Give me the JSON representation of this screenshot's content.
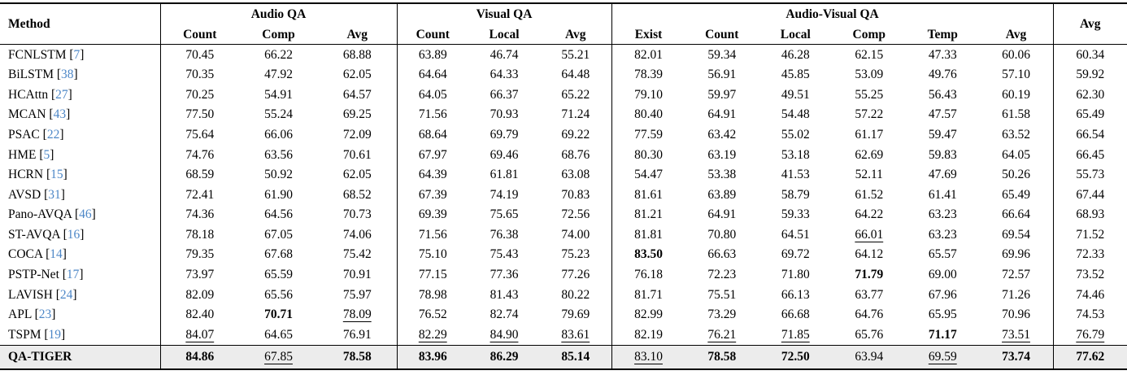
{
  "table": {
    "title": "AVQA benchmark results table",
    "header": {
      "method": "Method",
      "avg": "Avg",
      "groups": [
        {
          "label": "Audio QA",
          "cols": [
            "Count",
            "Comp",
            "Avg"
          ]
        },
        {
          "label": "Visual QA",
          "cols": [
            "Count",
            "Local",
            "Avg"
          ]
        },
        {
          "label": "Audio-Visual QA",
          "cols": [
            "Exist",
            "Count",
            "Local",
            "Comp",
            "Temp",
            "Avg"
          ]
        }
      ]
    },
    "colors": {
      "citation": "#4d87c7",
      "highlight_row_bg": "#ececec",
      "rule": "#000000"
    },
    "rows": [
      {
        "method": "FCNLSTM",
        "cite": "7",
        "highlight": false,
        "values": [
          "70.45",
          "66.22",
          "68.88",
          "63.89",
          "46.74",
          "55.21",
          "82.01",
          "59.34",
          "46.28",
          "62.15",
          "47.33",
          "60.06",
          "60.34"
        ],
        "fmt": [
          "",
          "",
          "",
          "",
          "",
          "",
          "",
          "",
          "",
          "",
          "",
          "",
          ""
        ]
      },
      {
        "method": "BiLSTM",
        "cite": "38",
        "highlight": false,
        "values": [
          "70.35",
          "47.92",
          "62.05",
          "64.64",
          "64.33",
          "64.48",
          "78.39",
          "56.91",
          "45.85",
          "53.09",
          "49.76",
          "57.10",
          "59.92"
        ],
        "fmt": [
          "",
          "",
          "",
          "",
          "",
          "",
          "",
          "",
          "",
          "",
          "",
          "",
          ""
        ]
      },
      {
        "method": "HCAttn",
        "cite": "27",
        "highlight": false,
        "values": [
          "70.25",
          "54.91",
          "64.57",
          "64.05",
          "66.37",
          "65.22",
          "79.10",
          "59.97",
          "49.51",
          "55.25",
          "56.43",
          "60.19",
          "62.30"
        ],
        "fmt": [
          "",
          "",
          "",
          "",
          "",
          "",
          "",
          "",
          "",
          "",
          "",
          "",
          ""
        ]
      },
      {
        "method": "MCAN",
        "cite": "43",
        "highlight": false,
        "values": [
          "77.50",
          "55.24",
          "69.25",
          "71.56",
          "70.93",
          "71.24",
          "80.40",
          "64.91",
          "54.48",
          "57.22",
          "47.57",
          "61.58",
          "65.49"
        ],
        "fmt": [
          "",
          "",
          "",
          "",
          "",
          "",
          "",
          "",
          "",
          "",
          "",
          "",
          ""
        ]
      },
      {
        "method": "PSAC",
        "cite": "22",
        "highlight": false,
        "values": [
          "75.64",
          "66.06",
          "72.09",
          "68.64",
          "69.79",
          "69.22",
          "77.59",
          "63.42",
          "55.02",
          "61.17",
          "59.47",
          "63.52",
          "66.54"
        ],
        "fmt": [
          "",
          "",
          "",
          "",
          "",
          "",
          "",
          "",
          "",
          "",
          "",
          "",
          ""
        ]
      },
      {
        "method": "HME",
        "cite": "5",
        "highlight": false,
        "values": [
          "74.76",
          "63.56",
          "70.61",
          "67.97",
          "69.46",
          "68.76",
          "80.30",
          "63.19",
          "53.18",
          "62.69",
          "59.83",
          "64.05",
          "66.45"
        ],
        "fmt": [
          "",
          "",
          "",
          "",
          "",
          "",
          "",
          "",
          "",
          "",
          "",
          "",
          ""
        ]
      },
      {
        "method": "HCRN",
        "cite": "15",
        "highlight": false,
        "values": [
          "68.59",
          "50.92",
          "62.05",
          "64.39",
          "61.81",
          "63.08",
          "54.47",
          "53.38",
          "41.53",
          "52.11",
          "47.69",
          "50.26",
          "55.73"
        ],
        "fmt": [
          "",
          "",
          "",
          "",
          "",
          "",
          "",
          "",
          "",
          "",
          "",
          "",
          ""
        ]
      },
      {
        "method": "AVSD",
        "cite": "31",
        "highlight": false,
        "values": [
          "72.41",
          "61.90",
          "68.52",
          "67.39",
          "74.19",
          "70.83",
          "81.61",
          "63.89",
          "58.79",
          "61.52",
          "61.41",
          "65.49",
          "67.44"
        ],
        "fmt": [
          "",
          "",
          "",
          "",
          "",
          "",
          "",
          "",
          "",
          "",
          "",
          "",
          ""
        ]
      },
      {
        "method": "Pano-AVQA",
        "cite": "46",
        "highlight": false,
        "values": [
          "74.36",
          "64.56",
          "70.73",
          "69.39",
          "75.65",
          "72.56",
          "81.21",
          "64.91",
          "59.33",
          "64.22",
          "63.23",
          "66.64",
          "68.93"
        ],
        "fmt": [
          "",
          "",
          "",
          "",
          "",
          "",
          "",
          "",
          "",
          "",
          "",
          "",
          ""
        ]
      },
      {
        "method": "ST-AVQA",
        "cite": "16",
        "highlight": false,
        "values": [
          "78.18",
          "67.05",
          "74.06",
          "71.56",
          "76.38",
          "74.00",
          "81.81",
          "70.80",
          "64.51",
          "66.01",
          "63.23",
          "69.54",
          "71.52"
        ],
        "fmt": [
          "",
          "",
          "",
          "",
          "",
          "",
          "",
          "",
          "",
          "u",
          "",
          "",
          ""
        ]
      },
      {
        "method": "COCA",
        "cite": "14",
        "highlight": false,
        "values": [
          "79.35",
          "67.68",
          "75.42",
          "75.10",
          "75.43",
          "75.23",
          "83.50",
          "66.63",
          "69.72",
          "64.12",
          "65.57",
          "69.96",
          "72.33"
        ],
        "fmt": [
          "",
          "",
          "",
          "",
          "",
          "",
          "b",
          "",
          "",
          "",
          "",
          "",
          ""
        ]
      },
      {
        "method": "PSTP-Net",
        "cite": "17",
        "highlight": false,
        "values": [
          "73.97",
          "65.59",
          "70.91",
          "77.15",
          "77.36",
          "77.26",
          "76.18",
          "72.23",
          "71.80",
          "71.79",
          "69.00",
          "72.57",
          "73.52"
        ],
        "fmt": [
          "",
          "",
          "",
          "",
          "",
          "",
          "",
          "",
          "",
          "b",
          "",
          "",
          ""
        ]
      },
      {
        "method": "LAVISH",
        "cite": "24",
        "highlight": false,
        "values": [
          "82.09",
          "65.56",
          "75.97",
          "78.98",
          "81.43",
          "80.22",
          "81.71",
          "75.51",
          "66.13",
          "63.77",
          "67.96",
          "71.26",
          "74.46"
        ],
        "fmt": [
          "",
          "",
          "",
          "",
          "",
          "",
          "",
          "",
          "",
          "",
          "",
          "",
          ""
        ]
      },
      {
        "method": "APL",
        "cite": "23",
        "highlight": false,
        "values": [
          "82.40",
          "70.71",
          "78.09",
          "76.52",
          "82.74",
          "79.69",
          "82.99",
          "73.29",
          "66.68",
          "64.76",
          "65.95",
          "70.96",
          "74.53"
        ],
        "fmt": [
          "",
          "b",
          "u",
          "",
          "",
          "",
          "",
          "",
          "",
          "",
          "",
          "",
          ""
        ]
      },
      {
        "method": "TSPM",
        "cite": "19",
        "highlight": false,
        "values": [
          "84.07",
          "64.65",
          "76.91",
          "82.29",
          "84.90",
          "83.61",
          "82.19",
          "76.21",
          "71.85",
          "65.76",
          "71.17",
          "73.51",
          "76.79"
        ],
        "fmt": [
          "u",
          "",
          "",
          "u",
          "u",
          "u",
          "",
          "u",
          "u",
          "",
          "b",
          "u",
          "u"
        ]
      },
      {
        "method": "QA-TIGER",
        "cite": "",
        "highlight": true,
        "values": [
          "84.86",
          "67.85",
          "78.58",
          "83.96",
          "86.29",
          "85.14",
          "83.10",
          "78.58",
          "72.50",
          "63.94",
          "69.59",
          "73.74",
          "77.62"
        ],
        "fmt": [
          "b",
          "u",
          "b",
          "b",
          "b",
          "b",
          "u",
          "b",
          "b",
          "",
          "u",
          "b",
          "b"
        ]
      }
    ]
  }
}
